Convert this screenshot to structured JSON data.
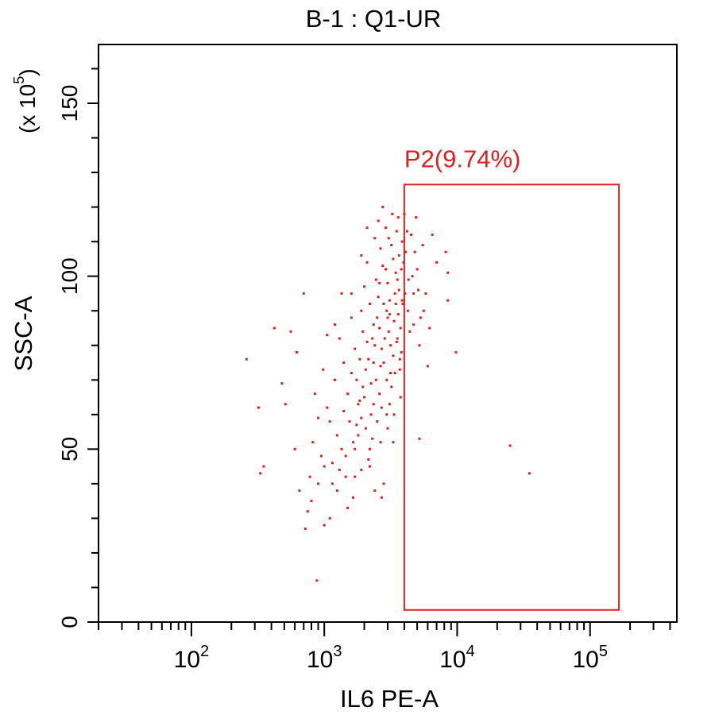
{
  "chart_data": {
    "type": "scatter",
    "title": "B-1 : Q1-UR",
    "xlabel": "IL6 PE-A",
    "ylabel": "SSC-A",
    "y_multiplier_label": "(x 10",
    "y_multiplier_exp": "5",
    "y_multiplier_close": ")",
    "x_scale": "log",
    "xlim": [
      20,
      450000
    ],
    "ylim": [
      0,
      167
    ],
    "x_ticks": [
      {
        "value": 100,
        "base": "10",
        "exp": "2"
      },
      {
        "value": 1000,
        "base": "10",
        "exp": "3"
      },
      {
        "value": 10000,
        "base": "10",
        "exp": "4"
      },
      {
        "value": 100000,
        "base": "10",
        "exp": "5"
      }
    ],
    "y_ticks": [
      {
        "value": 0,
        "label": "0"
      },
      {
        "value": 50,
        "label": "50"
      },
      {
        "value": 100,
        "label": "100"
      },
      {
        "value": 150,
        "label": "150"
      }
    ],
    "y_minor_step": 10,
    "gate": {
      "name": "P2",
      "label": "P2(9.74%)",
      "percent": 9.74,
      "x_range": [
        4000,
        165000
      ],
      "y_range": [
        3.5,
        126.5
      ]
    },
    "series": [
      {
        "color": "#e31e1e",
        "points": [
          [
            260,
            76
          ],
          [
            320,
            62
          ],
          [
            420,
            85
          ],
          [
            350,
            45
          ],
          [
            330,
            43
          ],
          [
            480,
            69
          ],
          [
            510,
            63
          ],
          [
            560,
            84
          ],
          [
            620,
            78
          ],
          [
            700,
            95
          ],
          [
            720,
            27
          ],
          [
            780,
            42
          ],
          [
            820,
            52
          ],
          [
            880,
            12
          ],
          [
            900,
            59
          ],
          [
            980,
            73
          ],
          [
            1050,
            83
          ],
          [
            1100,
            30
          ],
          [
            1150,
            46
          ],
          [
            1200,
            86
          ],
          [
            1300,
            44
          ],
          [
            1350,
            95
          ],
          [
            1400,
            61
          ],
          [
            1500,
            33
          ],
          [
            1600,
            72
          ],
          [
            1700,
            79
          ],
          [
            1800,
            54
          ],
          [
            1900,
            90
          ],
          [
            2000,
            65
          ],
          [
            2100,
            104
          ],
          [
            2200,
            45
          ],
          [
            2300,
            82
          ],
          [
            2400,
            111
          ],
          [
            2500,
            58
          ],
          [
            2600,
            98
          ],
          [
            2700,
            36
          ],
          [
            2800,
            75
          ],
          [
            2900,
            114
          ],
          [
            3000,
            88
          ],
          [
            3100,
            63
          ],
          [
            3200,
            109
          ],
          [
            3300,
            52
          ],
          [
            3400,
            95
          ],
          [
            3500,
            81
          ],
          [
            3600,
            117
          ],
          [
            3700,
            73
          ],
          [
            3800,
            102
          ],
          [
            3900,
            92
          ],
          [
            4100,
            107
          ],
          [
            4300,
            99
          ],
          [
            4500,
            112
          ],
          [
            4700,
            86
          ],
          [
            4900,
            117
          ],
          [
            5200,
            80
          ],
          [
            5200,
            53
          ],
          [
            5500,
            109
          ],
          [
            5800,
            95
          ],
          [
            6000,
            74
          ],
          [
            6500,
            112
          ],
          [
            7000,
            104
          ],
          [
            8200,
            107
          ],
          [
            8500,
            101
          ],
          [
            8500,
            93
          ],
          [
            9800,
            78
          ],
          [
            25000,
            51
          ],
          [
            35000,
            43
          ],
          [
            800,
            35
          ],
          [
            1000,
            28
          ],
          [
            1250,
            38
          ],
          [
            1450,
            48
          ],
          [
            1750,
            57
          ],
          [
            1950,
            68
          ],
          [
            2150,
            76
          ],
          [
            2350,
            86
          ],
          [
            2550,
            94
          ],
          [
            2750,
            103
          ],
          [
            2950,
            70
          ],
          [
            3150,
            80
          ],
          [
            3350,
            60
          ],
          [
            3550,
            99
          ],
          [
            3750,
            85
          ],
          [
            1700,
            42
          ],
          [
            2200,
            50
          ],
          [
            2600,
            66
          ],
          [
            3000,
            56
          ],
          [
            3400,
            72
          ],
          [
            1500,
            66
          ],
          [
            1250,
            54
          ],
          [
            1050,
            62
          ],
          [
            2800,
            40
          ],
          [
            3100,
            93
          ],
          [
            2450,
            70
          ],
          [
            3300,
            105
          ],
          [
            2750,
            120
          ],
          [
            3850,
            110
          ],
          [
            4250,
            90
          ],
          [
            4600,
            100
          ],
          [
            5100,
            96
          ],
          [
            1600,
            88
          ],
          [
            2000,
            97
          ],
          [
            2400,
            80
          ],
          [
            2900,
            102
          ],
          [
            3600,
            89
          ],
          [
            1800,
            63
          ],
          [
            2250,
            60
          ],
          [
            2650,
            74
          ],
          [
            3050,
            84
          ],
          [
            3450,
            92
          ],
          [
            3800,
            78
          ],
          [
            1350,
            50
          ],
          [
            1150,
            40
          ],
          [
            950,
            48
          ],
          [
            1650,
            36
          ],
          [
            1900,
            44
          ],
          [
            2300,
            53
          ],
          [
            2700,
            62
          ],
          [
            3200,
            68
          ],
          [
            3700,
            76
          ],
          [
            4400,
            84
          ],
          [
            4800,
            107
          ],
          [
            5300,
            88
          ],
          [
            4000,
            118
          ],
          [
            3500,
            113
          ],
          [
            2650,
            108
          ],
          [
            2200,
            92
          ],
          [
            1950,
            84
          ],
          [
            1750,
            70
          ],
          [
            2050,
            56
          ],
          [
            2500,
            88
          ],
          [
            3000,
            98
          ],
          [
            3350,
            87
          ],
          [
            3650,
            96
          ],
          [
            3950,
            104
          ],
          [
            2850,
            82
          ],
          [
            2350,
            75
          ],
          [
            1850,
            64
          ],
          [
            1550,
            58
          ],
          [
            1400,
            75
          ],
          [
            1200,
            70
          ],
          [
            1100,
            58
          ],
          [
            900,
            40
          ],
          [
            1000,
            45
          ],
          [
            750,
            32
          ],
          [
            650,
            38
          ],
          [
            600,
            50
          ],
          [
            850,
            66
          ],
          [
            1300,
            82
          ],
          [
            1600,
            95
          ],
          [
            1900,
            106
          ],
          [
            2100,
            114
          ],
          [
            2550,
            116
          ],
          [
            3250,
            118
          ],
          [
            4200,
            113
          ],
          [
            4700,
            95
          ],
          [
            5000,
            102
          ],
          [
            5600,
            90
          ],
          [
            6200,
            85
          ],
          [
            3750,
            65
          ],
          [
            3150,
            72
          ],
          [
            2650,
            52
          ],
          [
            2150,
            47
          ],
          [
            1700,
            50
          ],
          [
            1450,
            42
          ],
          [
            2400,
            38
          ],
          [
            2950,
            60
          ],
          [
            3550,
            82
          ],
          [
            4050,
            95
          ],
          [
            3300,
            77
          ],
          [
            2800,
            92
          ],
          [
            2100,
            81
          ],
          [
            1850,
            76
          ],
          [
            2450,
            99
          ],
          [
            3050,
            111
          ],
          [
            3650,
            106
          ],
          [
            2950,
            90
          ],
          [
            2600,
            85
          ],
          [
            2250,
            69
          ],
          [
            1900,
            59
          ],
          [
            1650,
            52
          ],
          [
            2700,
            79
          ],
          [
            3100,
            89
          ],
          [
            3450,
            101
          ],
          [
            3850,
            93
          ],
          [
            2350,
            63
          ],
          [
            2050,
            73
          ]
        ]
      }
    ]
  }
}
